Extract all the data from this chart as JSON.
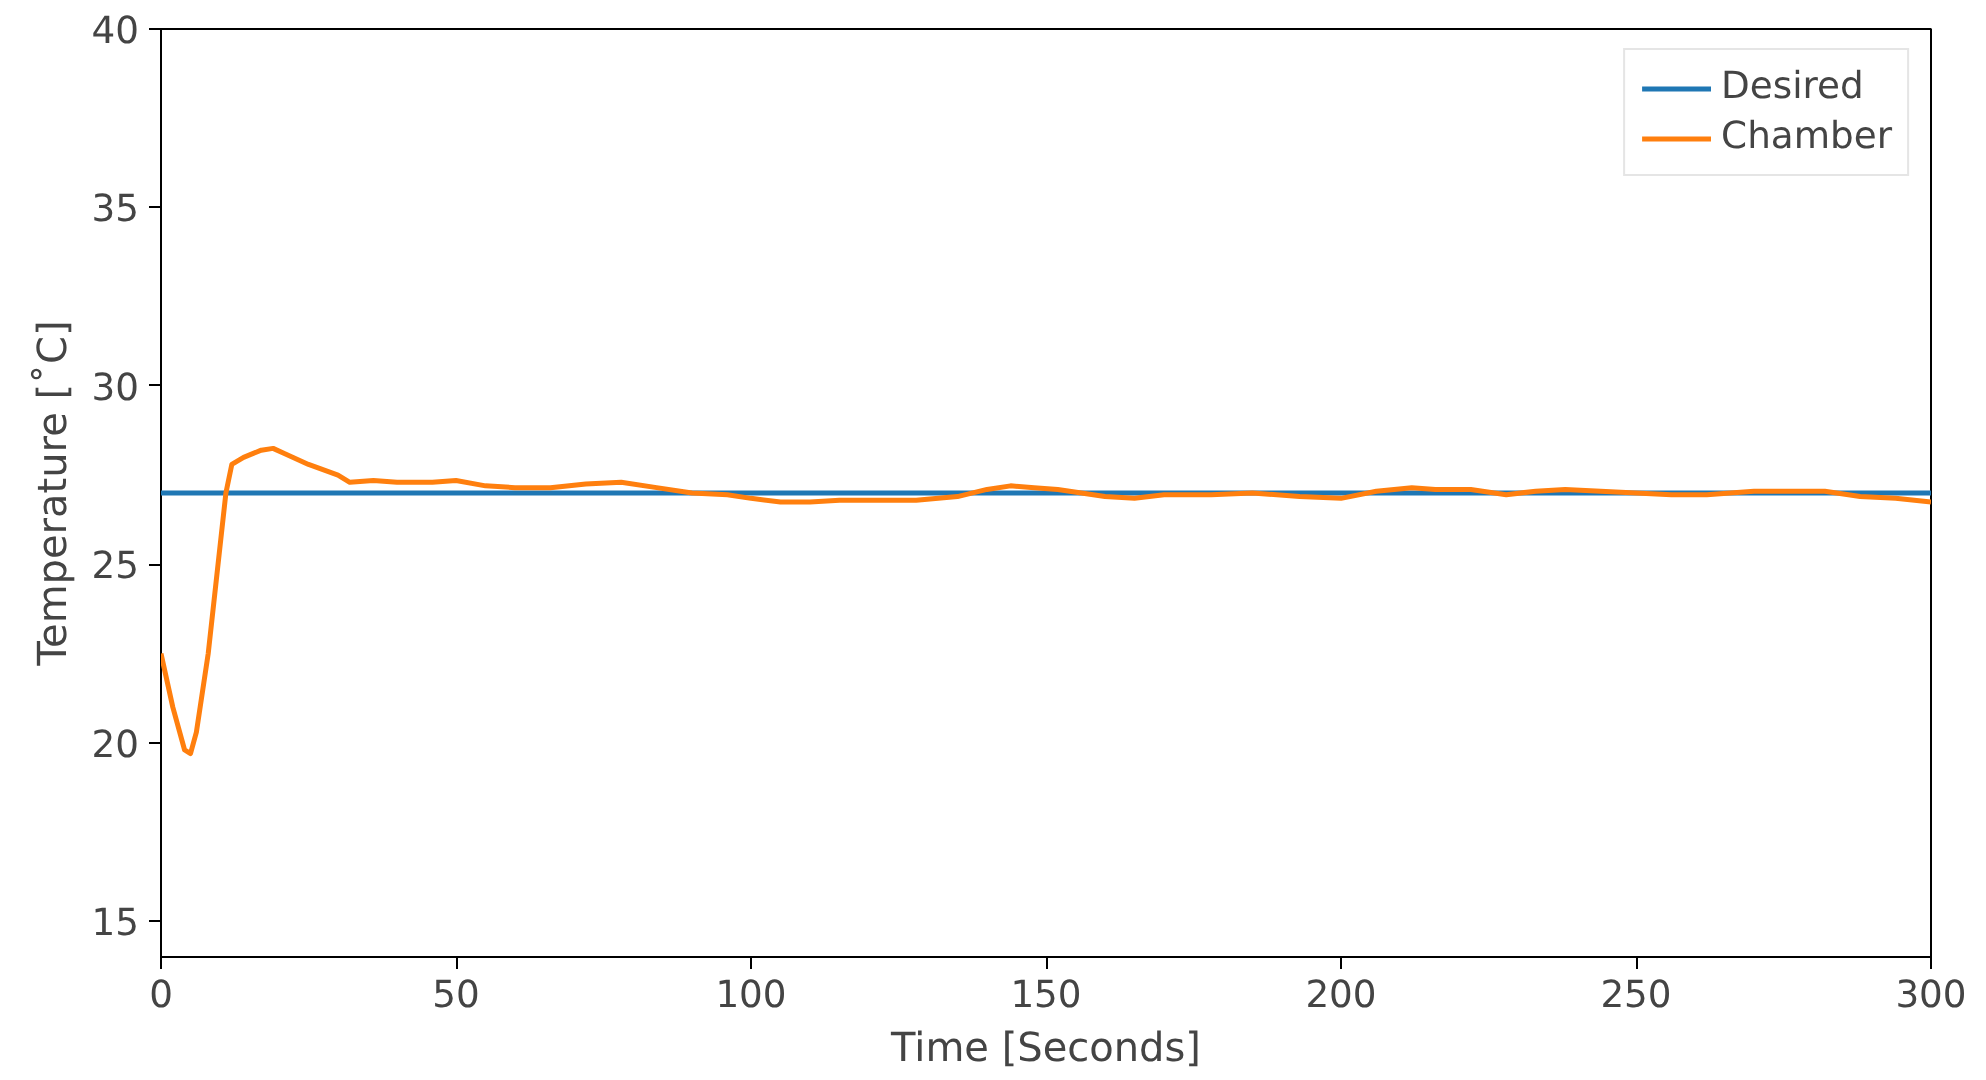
{
  "chart_data": {
    "type": "line",
    "xlabel": "Time [Seconds]",
    "ylabel": "Temperature [˚C]",
    "xlim": [
      0,
      300
    ],
    "ylim": [
      14,
      40
    ],
    "xticks": [
      0,
      50,
      100,
      150,
      200,
      250,
      300
    ],
    "yticks": [
      15,
      20,
      25,
      30,
      35,
      40
    ],
    "grid": false,
    "legend": "top right",
    "line_style": "solid",
    "series": [
      {
        "name": "Desired",
        "color": "#1f77b4",
        "x": [
          0,
          300
        ],
        "values": [
          27,
          27
        ]
      },
      {
        "name": "Chamber",
        "color": "#ff7f0e",
        "x": [
          0,
          2,
          4,
          5,
          6,
          8,
          10,
          11,
          12,
          14,
          17,
          19,
          21,
          25,
          30,
          32,
          36,
          40,
          46,
          50,
          55,
          60,
          66,
          72,
          78,
          84,
          90,
          96,
          100,
          105,
          110,
          115,
          120,
          128,
          135,
          140,
          144,
          148,
          152,
          156,
          160,
          165,
          170,
          178,
          185,
          193,
          200,
          206,
          212,
          216,
          222,
          228,
          233,
          238,
          244,
          250,
          256,
          262,
          270,
          276,
          282,
          288,
          294,
          300
        ],
        "values": [
          22.5,
          21,
          19.8,
          19.7,
          20.3,
          22.5,
          25.5,
          27,
          27.8,
          28.0,
          28.2,
          28.25,
          28.1,
          27.8,
          27.5,
          27.3,
          27.35,
          27.3,
          27.3,
          27.35,
          27.2,
          27.15,
          27.15,
          27.25,
          27.3,
          27.15,
          27.0,
          26.95,
          26.85,
          26.75,
          26.75,
          26.8,
          26.8,
          26.8,
          26.9,
          27.1,
          27.2,
          27.15,
          27.1,
          27.0,
          26.9,
          26.85,
          26.95,
          26.95,
          27.0,
          26.9,
          26.85,
          27.05,
          27.15,
          27.1,
          27.1,
          26.95,
          27.05,
          27.1,
          27.05,
          27.0,
          26.95,
          26.95,
          27.05,
          27.05,
          27.05,
          26.9,
          26.85,
          26.75
        ]
      }
    ]
  }
}
